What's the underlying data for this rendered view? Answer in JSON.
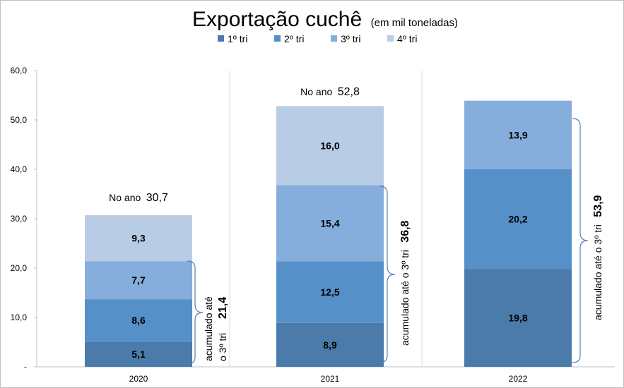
{
  "chart_data": {
    "type": "bar",
    "stacked": true,
    "title": "Exportação cuchê",
    "subtitle": "(em mil toneladas)",
    "categories": [
      "2020",
      "2021",
      "2022"
    ],
    "series": [
      {
        "name": "1º tri",
        "values": [
          5.1,
          8.9,
          19.8
        ],
        "color": "#4a7bab"
      },
      {
        "name": "2º tri",
        "values": [
          8.6,
          12.5,
          20.2
        ],
        "color": "#5690c9"
      },
      {
        "name": "3º tri",
        "values": [
          7.7,
          15.4,
          13.9
        ],
        "color": "#86aedc"
      },
      {
        "name": "4º tri",
        "values": [
          9.3,
          16.0,
          null
        ],
        "color": "#b8cce6"
      }
    ],
    "data_labels": [
      [
        "5,1",
        "8,6",
        "7,7",
        "9,3"
      ],
      [
        "8,9",
        "12,5",
        "15,4",
        "16,0"
      ],
      [
        "19,8",
        "20,2",
        "13,9",
        ""
      ]
    ],
    "yticks": [
      "-",
      "10,0",
      "20,0",
      "30,0",
      "40,0",
      "50,0",
      "60,0"
    ],
    "ylim": [
      0,
      60
    ],
    "legend_position": "top",
    "grid": false,
    "annotations": {
      "year_totals": [
        {
          "label": "No ano",
          "value": "30,7"
        },
        {
          "label": "No ano",
          "value": "52,8"
        }
      ],
      "ytd_2020": {
        "line1": "acumulado até",
        "line2": "o 3º tri",
        "value": "21,4"
      },
      "ytd_2021": {
        "text": "acumulado até o 3º tri",
        "value": "36,8"
      },
      "ytd_2022": {
        "text": "acumulado até o 3º tri",
        "value": "53,9"
      }
    }
  }
}
